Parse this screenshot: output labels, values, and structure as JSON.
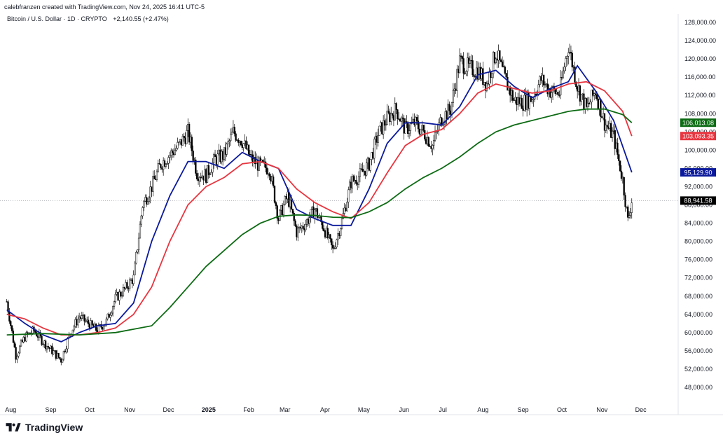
{
  "header": {
    "attribution": "calebfranzen created with TradingView.com, Nov 24, 2025 16:41 UTC-5",
    "symbol": "Bitcoin / U.S. Dollar · 1D · CRYPTO",
    "change": "+2,140.55 (+2.47%)"
  },
  "footer": {
    "brand": "TradingView",
    "logo_icon": "tradingview-logo-icon"
  },
  "chart_data": {
    "type": "line",
    "title": "",
    "xlabel": "",
    "ylabel": "",
    "x_ticks": [
      "Aug",
      "Sep",
      "Oct",
      "Nov",
      "Dec",
      "2025",
      "Feb",
      "Mar",
      "Apr",
      "May",
      "Jun",
      "Jul",
      "Aug",
      "Sep",
      "Oct",
      "Nov",
      "Dec"
    ],
    "y_ticks": [
      "128,000.00",
      "124,000.00",
      "120,000.00",
      "116,000.00",
      "112,000.00",
      "108,000.00",
      "104,000.00",
      "100,000.00",
      "96,000.00",
      "92,000.00",
      "88,000.00",
      "84,000.00",
      "80,000.00",
      "76,000.00",
      "72,000.00",
      "68,000.00",
      "64,000.00",
      "60,000.00",
      "56,000.00",
      "52,000.00",
      "48,000.00"
    ],
    "ylim": [
      46000,
      130000
    ],
    "x_range": [
      "2024-07-27",
      "2025-12-12"
    ],
    "grid": false,
    "last_price": {
      "value": 88941.58,
      "label": "88,941.58",
      "color": "#000000"
    },
    "series": [
      {
        "style": "candles",
        "color_up": "#ffffff",
        "color_down": "#000000",
        "points": [
          [
            "2024-07-29",
            66800
          ],
          [
            "2024-08-05",
            55000
          ],
          [
            "2024-08-12",
            59000
          ],
          [
            "2024-08-19",
            60500
          ],
          [
            "2024-08-26",
            58000
          ],
          [
            "2024-09-02",
            56000
          ],
          [
            "2024-09-09",
            54000
          ],
          [
            "2024-09-16",
            60000
          ],
          [
            "2024-09-23",
            63500
          ],
          [
            "2024-09-30",
            62000
          ],
          [
            "2024-10-07",
            60500
          ],
          [
            "2024-10-14",
            62500
          ],
          [
            "2024-10-21",
            67500
          ],
          [
            "2024-10-28",
            69500
          ],
          [
            "2024-11-04",
            72000
          ],
          [
            "2024-11-11",
            88000
          ],
          [
            "2024-11-18",
            92000
          ],
          [
            "2024-11-25",
            97000
          ],
          [
            "2024-12-02",
            99000
          ],
          [
            "2024-12-09",
            101000
          ],
          [
            "2024-12-16",
            104000
          ],
          [
            "2024-12-23",
            95000
          ],
          [
            "2024-12-30",
            94500
          ],
          [
            "2025-01-06",
            98000
          ],
          [
            "2025-01-13",
            99000
          ],
          [
            "2025-01-20",
            104000
          ],
          [
            "2025-01-27",
            102000
          ],
          [
            "2025-02-03",
            98000
          ],
          [
            "2025-02-10",
            96500
          ],
          [
            "2025-02-17",
            96000
          ],
          [
            "2025-02-24",
            85000
          ],
          [
            "2025-03-03",
            90000
          ],
          [
            "2025-03-10",
            82000
          ],
          [
            "2025-03-17",
            84000
          ],
          [
            "2025-03-24",
            87000
          ],
          [
            "2025-03-31",
            83000
          ],
          [
            "2025-04-07",
            78000
          ],
          [
            "2025-04-14",
            84500
          ],
          [
            "2025-04-21",
            93000
          ],
          [
            "2025-04-28",
            94500
          ],
          [
            "2025-05-05",
            97000
          ],
          [
            "2025-05-12",
            103500
          ],
          [
            "2025-05-19",
            107000
          ],
          [
            "2025-05-26",
            109000
          ],
          [
            "2025-06-02",
            104500
          ],
          [
            "2025-06-09",
            106000
          ],
          [
            "2025-06-16",
            104000
          ],
          [
            "2025-06-23",
            101000
          ],
          [
            "2025-06-30",
            107000
          ],
          [
            "2025-07-07",
            109000
          ],
          [
            "2025-07-14",
            119500
          ],
          [
            "2025-07-21",
            118000
          ],
          [
            "2025-07-28",
            117500
          ],
          [
            "2025-08-04",
            114500
          ],
          [
            "2025-08-11",
            121500
          ],
          [
            "2025-08-18",
            115500
          ],
          [
            "2025-08-25",
            111000
          ],
          [
            "2025-09-01",
            110500
          ],
          [
            "2025-09-08",
            111500
          ],
          [
            "2025-09-15",
            115500
          ],
          [
            "2025-09-22",
            113000
          ],
          [
            "2025-09-29",
            112500
          ],
          [
            "2025-10-06",
            123000
          ],
          [
            "2025-10-13",
            114000
          ],
          [
            "2025-10-20",
            109000
          ],
          [
            "2025-10-27",
            113000
          ],
          [
            "2025-11-03",
            106000
          ],
          [
            "2025-11-10",
            103000
          ],
          [
            "2025-11-17",
            93500
          ],
          [
            "2025-11-21",
            84500
          ],
          [
            "2025-11-24",
            88941
          ]
        ]
      },
      {
        "style": "line",
        "color": "#0b1a9c",
        "last_label": "95,129.90",
        "points": [
          [
            "2024-07-29",
            65000
          ],
          [
            "2024-08-12",
            62000
          ],
          [
            "2024-08-26",
            59500
          ],
          [
            "2024-09-09",
            58000
          ],
          [
            "2024-09-23",
            60000
          ],
          [
            "2024-10-07",
            61500
          ],
          [
            "2024-10-21",
            62000
          ],
          [
            "2024-11-04",
            66500
          ],
          [
            "2024-11-18",
            80000
          ],
          [
            "2024-12-02",
            90000
          ],
          [
            "2024-12-16",
            97500
          ],
          [
            "2024-12-30",
            97500
          ],
          [
            "2025-01-13",
            96000
          ],
          [
            "2025-01-27",
            99500
          ],
          [
            "2025-02-10",
            97500
          ],
          [
            "2025-02-24",
            96000
          ],
          [
            "2025-03-10",
            87000
          ],
          [
            "2025-03-24",
            85000
          ],
          [
            "2025-04-07",
            83500
          ],
          [
            "2025-04-21",
            83500
          ],
          [
            "2025-05-05",
            91500
          ],
          [
            "2025-05-19",
            101500
          ],
          [
            "2025-06-02",
            106000
          ],
          [
            "2025-06-16",
            106000
          ],
          [
            "2025-06-30",
            105500
          ],
          [
            "2025-07-14",
            109500
          ],
          [
            "2025-07-28",
            116500
          ],
          [
            "2025-08-11",
            117500
          ],
          [
            "2025-08-25",
            114000
          ],
          [
            "2025-09-08",
            111500
          ],
          [
            "2025-09-22",
            113500
          ],
          [
            "2025-10-06",
            115000
          ],
          [
            "2025-10-13",
            118500
          ],
          [
            "2025-10-27",
            113000
          ],
          [
            "2025-11-10",
            106500
          ],
          [
            "2025-11-24",
            95130
          ]
        ]
      },
      {
        "style": "line",
        "color": "#e8353f",
        "last_label": "103,093.35",
        "points": [
          [
            "2024-07-29",
            64000
          ],
          [
            "2024-08-12",
            63000
          ],
          [
            "2024-08-26",
            61000
          ],
          [
            "2024-09-09",
            59500
          ],
          [
            "2024-09-23",
            59500
          ],
          [
            "2024-10-07",
            60000
          ],
          [
            "2024-10-21",
            61000
          ],
          [
            "2024-11-04",
            64000
          ],
          [
            "2024-11-18",
            70000
          ],
          [
            "2024-12-02",
            80000
          ],
          [
            "2024-12-16",
            88000
          ],
          [
            "2024-12-30",
            92000
          ],
          [
            "2025-01-13",
            94000
          ],
          [
            "2025-01-27",
            97000
          ],
          [
            "2025-02-10",
            97500
          ],
          [
            "2025-02-24",
            96000
          ],
          [
            "2025-03-10",
            91500
          ],
          [
            "2025-03-24",
            88500
          ],
          [
            "2025-04-07",
            86500
          ],
          [
            "2025-04-21",
            85000
          ],
          [
            "2025-05-05",
            88500
          ],
          [
            "2025-05-19",
            95000
          ],
          [
            "2025-06-02",
            101000
          ],
          [
            "2025-06-16",
            103500
          ],
          [
            "2025-06-30",
            104500
          ],
          [
            "2025-07-14",
            108000
          ],
          [
            "2025-07-28",
            112500
          ],
          [
            "2025-08-11",
            114500
          ],
          [
            "2025-08-25",
            113500
          ],
          [
            "2025-09-08",
            112500
          ],
          [
            "2025-09-22",
            113000
          ],
          [
            "2025-10-06",
            114500
          ],
          [
            "2025-10-20",
            115000
          ],
          [
            "2025-11-03",
            113000
          ],
          [
            "2025-11-17",
            108500
          ],
          [
            "2025-11-24",
            103093
          ]
        ]
      },
      {
        "style": "line",
        "color": "#0d6b14",
        "last_label": "106,013.08",
        "points": [
          [
            "2024-07-29",
            59500
          ],
          [
            "2024-08-26",
            59800
          ],
          [
            "2024-09-23",
            59500
          ],
          [
            "2024-10-21",
            60000
          ],
          [
            "2024-11-18",
            61500
          ],
          [
            "2024-12-02",
            65500
          ],
          [
            "2024-12-16",
            70000
          ],
          [
            "2024-12-30",
            74500
          ],
          [
            "2025-01-13",
            78000
          ],
          [
            "2025-01-27",
            81500
          ],
          [
            "2025-02-10",
            84000
          ],
          [
            "2025-02-24",
            85500
          ],
          [
            "2025-03-10",
            85800
          ],
          [
            "2025-03-24",
            85700
          ],
          [
            "2025-04-07",
            85300
          ],
          [
            "2025-04-21",
            85200
          ],
          [
            "2025-05-05",
            86500
          ],
          [
            "2025-05-19",
            88500
          ],
          [
            "2025-06-02",
            91500
          ],
          [
            "2025-06-16",
            94000
          ],
          [
            "2025-06-30",
            96000
          ],
          [
            "2025-07-14",
            98500
          ],
          [
            "2025-07-28",
            101500
          ],
          [
            "2025-08-11",
            104000
          ],
          [
            "2025-08-25",
            105500
          ],
          [
            "2025-09-08",
            106500
          ],
          [
            "2025-09-22",
            107500
          ],
          [
            "2025-10-06",
            108500
          ],
          [
            "2025-10-20",
            109000
          ],
          [
            "2025-11-03",
            109000
          ],
          [
            "2025-11-17",
            107800
          ],
          [
            "2025-11-24",
            106013
          ]
        ]
      }
    ]
  }
}
